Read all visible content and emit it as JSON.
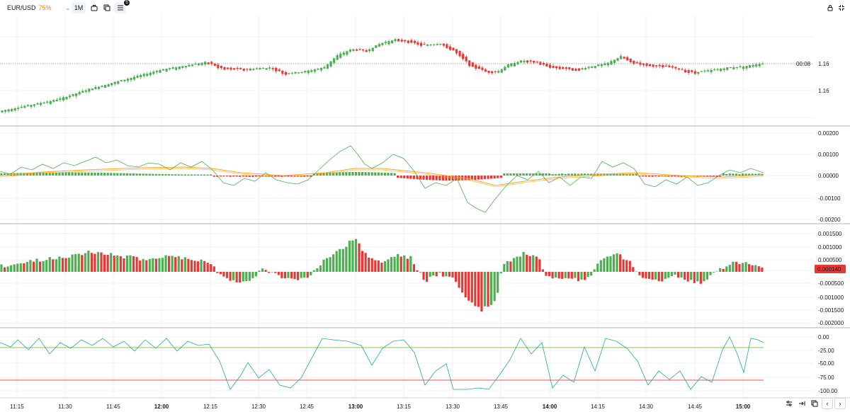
{
  "toolbar": {
    "symbol": "EUR/USD",
    "percent": "75%",
    "interval": "1M",
    "indicator_count": "5"
  },
  "price_axis": {
    "labels": [
      "1.16",
      "1.16"
    ],
    "countdown": "00:08",
    "current_price": "1.16"
  },
  "macd_axis": {
    "labels": [
      "0.00200",
      "0.00100",
      "0.00000",
      "-0.00100",
      "-0.00200"
    ]
  },
  "osc_axis": {
    "labels": [
      "0.001500",
      "0.001000",
      "0.000500",
      "-0.000500",
      "-0.001000",
      "-0.001500",
      "-0.002000"
    ],
    "current_value": "0.000140"
  },
  "wr_axis": {
    "labels": [
      "0.00",
      "-25.00",
      "-50.00",
      "-75.00",
      "-100.00"
    ]
  },
  "time_axis": {
    "labels": [
      {
        "text": "11:15",
        "bold": false
      },
      {
        "text": "11:30",
        "bold": false
      },
      {
        "text": "11:45",
        "bold": false
      },
      {
        "text": "12:00",
        "bold": true
      },
      {
        "text": "12:15",
        "bold": false
      },
      {
        "text": "12:30",
        "bold": false
      },
      {
        "text": "12:45",
        "bold": false
      },
      {
        "text": "13:00",
        "bold": true
      },
      {
        "text": "13:15",
        "bold": false
      },
      {
        "text": "13:30",
        "bold": false
      },
      {
        "text": "13:45",
        "bold": false
      },
      {
        "text": "14:00",
        "bold": true
      },
      {
        "text": "14:15",
        "bold": false
      },
      {
        "text": "14:30",
        "bold": false
      },
      {
        "text": "14:45",
        "bold": false
      },
      {
        "text": "15:00",
        "bold": true
      }
    ]
  },
  "colors": {
    "up": "#4caf50",
    "down": "#e53935",
    "grid": "#eef0f3",
    "separator": "#c9ccd3",
    "signal_line": "#f5a623",
    "macd_line": "#4caf50",
    "wr_line": "#26a69a",
    "level_upper": "#8bc34a",
    "level_lower": "#ef5350"
  },
  "icons": {
    "screenshot": "camera-icon",
    "compare": "compare-icon",
    "indicators": "indicators-icon",
    "lock": "lock-icon",
    "fullscreen": "fullscreen-icon"
  }
}
